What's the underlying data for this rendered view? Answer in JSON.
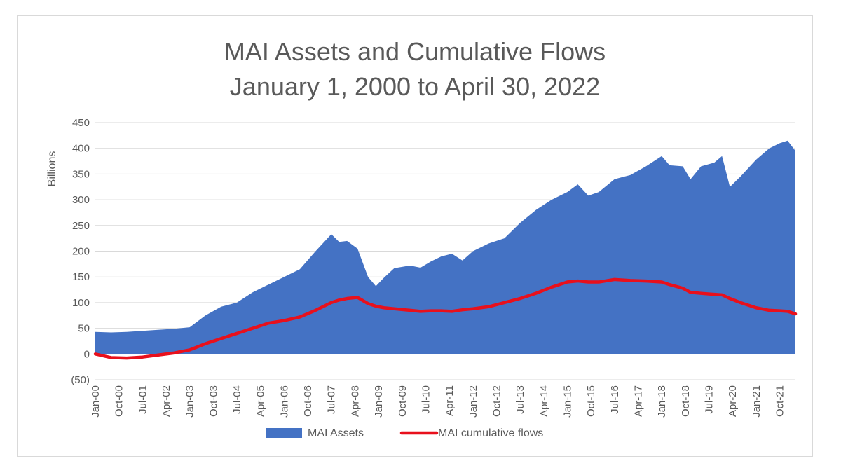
{
  "chart_data": {
    "type": "area",
    "title": "MAI Assets and Cumulative Flows",
    "subtitle": "January 1, 2000 to April 30, 2022",
    "ylabel": "Billions",
    "ylim": [
      -50,
      450
    ],
    "yticks": [
      -50,
      0,
      50,
      100,
      150,
      200,
      250,
      300,
      350,
      400,
      450
    ],
    "ytick_labels": [
      "(50)",
      "0",
      "50",
      "100",
      "150",
      "200",
      "250",
      "300",
      "350",
      "400",
      "450"
    ],
    "xticks": [
      "Jan-00",
      "Oct-00",
      "Jul-01",
      "Apr-02",
      "Jan-03",
      "Oct-03",
      "Jul-04",
      "Apr-05",
      "Jan-06",
      "Oct-06",
      "Jul-07",
      "Apr-08",
      "Jan-09",
      "Oct-09",
      "Jul-10",
      "Apr-11",
      "Jan-12",
      "Oct-12",
      "Jul-13",
      "Apr-14",
      "Jan-15",
      "Oct-15",
      "Jul-16",
      "Apr-17",
      "Jan-18",
      "Oct-18",
      "Jul-19",
      "Apr-20",
      "Jan-21",
      "Oct-21"
    ],
    "grid": true,
    "legend_position": "bottom",
    "x": [
      "2000-01",
      "2000-07",
      "2001-01",
      "2001-07",
      "2002-01",
      "2002-07",
      "2003-01",
      "2003-07",
      "2004-01",
      "2004-07",
      "2005-01",
      "2005-07",
      "2006-01",
      "2006-07",
      "2007-01",
      "2007-07",
      "2007-10",
      "2008-01",
      "2008-05",
      "2008-09",
      "2008-12",
      "2009-03",
      "2009-07",
      "2010-01",
      "2010-05",
      "2010-09",
      "2011-01",
      "2011-05",
      "2011-09",
      "2012-01",
      "2012-07",
      "2013-01",
      "2013-07",
      "2014-01",
      "2014-07",
      "2015-01",
      "2015-05",
      "2015-09",
      "2016-01",
      "2016-07",
      "2017-01",
      "2017-07",
      "2018-01",
      "2018-04",
      "2018-09",
      "2018-12",
      "2019-04",
      "2019-09",
      "2019-12",
      "2020-03",
      "2020-07",
      "2021-01",
      "2021-06",
      "2021-10",
      "2022-01",
      "2022-04"
    ],
    "series": [
      {
        "name": "MAI Assets",
        "kind": "area",
        "color": "#4472c4",
        "values": [
          43,
          42,
          43,
          45,
          47,
          49,
          52,
          75,
          92,
          100,
          120,
          135,
          150,
          165,
          200,
          233,
          218,
          220,
          205,
          150,
          132,
          148,
          167,
          172,
          168,
          180,
          190,
          195,
          182,
          200,
          215,
          225,
          255,
          280,
          300,
          315,
          330,
          308,
          315,
          340,
          348,
          365,
          385,
          367,
          365,
          340,
          365,
          372,
          385,
          325,
          345,
          378,
          400,
          410,
          415,
          395
        ]
      },
      {
        "name": "MAI cumulative flows",
        "kind": "line",
        "color": "#e8101c",
        "values": [
          0,
          -7,
          -8,
          -6,
          -2,
          2,
          8,
          20,
          30,
          40,
          50,
          60,
          65,
          72,
          85,
          100,
          105,
          108,
          110,
          98,
          93,
          90,
          88,
          85,
          83,
          84,
          84,
          83,
          86,
          88,
          92,
          100,
          108,
          118,
          130,
          140,
          142,
          140,
          140,
          145,
          143,
          142,
          140,
          135,
          128,
          120,
          118,
          116,
          115,
          108,
          100,
          90,
          85,
          84,
          83,
          78
        ]
      }
    ]
  }
}
